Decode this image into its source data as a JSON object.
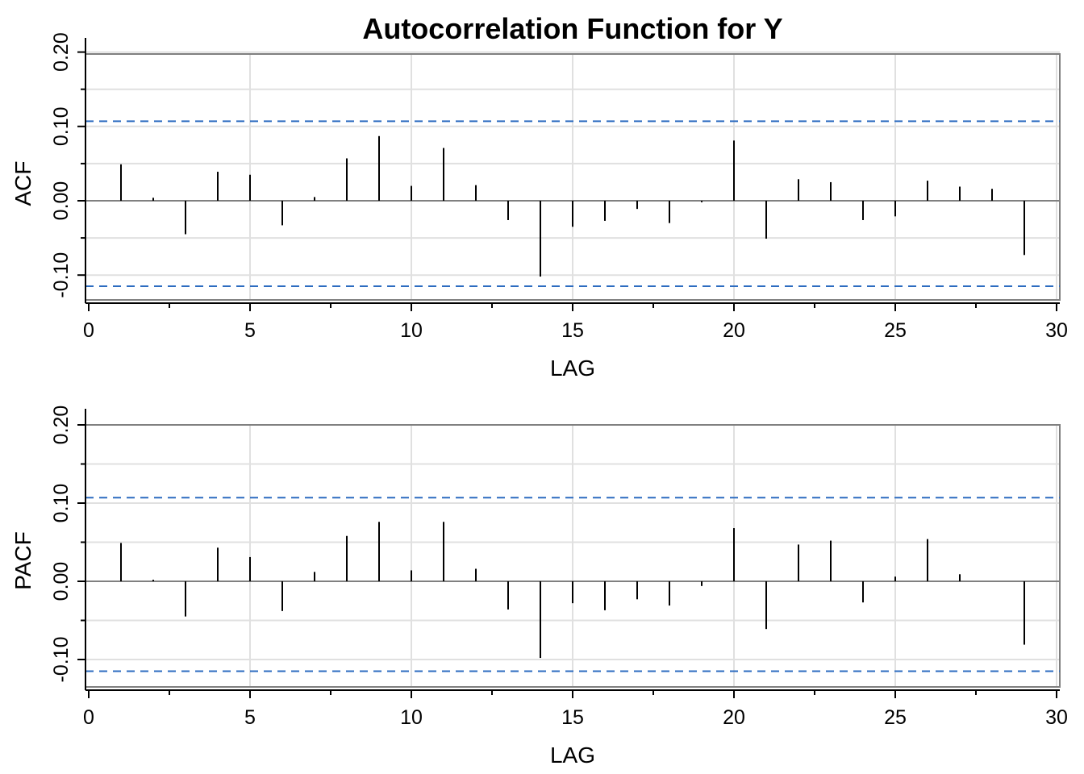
{
  "chart_data": [
    {
      "type": "bar",
      "title": "Autocorrelation Function for Y",
      "xlabel": "LAG",
      "ylabel": "ACF",
      "xlim": [
        0,
        30
      ],
      "ylim": [
        -0.135,
        0.2
      ],
      "x_ticks": [
        "0",
        "5",
        "10",
        "15",
        "20",
        "25",
        "30"
      ],
      "y_ticks": [
        "-0.10",
        "0.00",
        "0.10",
        "0.20"
      ],
      "grid": true,
      "confidence_bounds": [
        -0.115,
        0.107
      ],
      "lags": [
        1,
        2,
        3,
        4,
        5,
        6,
        7,
        8,
        9,
        10,
        11,
        12,
        13,
        14,
        15,
        16,
        17,
        18,
        19,
        20,
        21,
        22,
        23,
        24,
        25,
        26,
        27,
        28,
        29
      ],
      "values": [
        0.049,
        0.004,
        -0.045,
        0.039,
        0.035,
        -0.033,
        0.005,
        0.057,
        0.087,
        0.02,
        0.071,
        0.021,
        -0.026,
        -0.102,
        -0.035,
        -0.027,
        -0.011,
        -0.03,
        -0.002,
        0.081,
        -0.051,
        0.029,
        0.025,
        -0.026,
        -0.021,
        0.027,
        0.019,
        0.016,
        -0.073
      ],
      "colors": {
        "stem": "#000000",
        "bound": "#2d6cc0",
        "zero": "#808080",
        "grid": "#e0e0e0",
        "frame": "#808080"
      }
    },
    {
      "type": "bar",
      "xlabel": "LAG",
      "ylabel": "PACF",
      "xlim": [
        0,
        30
      ],
      "ylim": [
        -0.135,
        0.2
      ],
      "x_ticks": [
        "0",
        "5",
        "10",
        "15",
        "20",
        "25",
        "30"
      ],
      "y_ticks": [
        "-0.10",
        "0.00",
        "0.10",
        "0.20"
      ],
      "grid": true,
      "confidence_bounds": [
        -0.115,
        0.107
      ],
      "lags": [
        1,
        2,
        3,
        4,
        5,
        6,
        7,
        8,
        9,
        10,
        11,
        12,
        13,
        14,
        15,
        16,
        17,
        18,
        19,
        20,
        21,
        22,
        23,
        24,
        25,
        26,
        27,
        28,
        29
      ],
      "values": [
        0.049,
        0.002,
        -0.045,
        0.043,
        0.031,
        -0.038,
        0.012,
        0.058,
        0.076,
        0.014,
        0.076,
        0.016,
        -0.036,
        -0.098,
        -0.028,
        -0.037,
        -0.023,
        -0.031,
        -0.006,
        0.068,
        -0.061,
        0.047,
        0.052,
        -0.027,
        0.006,
        0.054,
        0.009,
        0.0,
        -0.081
      ],
      "colors": {
        "stem": "#000000",
        "bound": "#2d6cc0",
        "zero": "#808080",
        "grid": "#e0e0e0",
        "frame": "#808080"
      }
    }
  ]
}
